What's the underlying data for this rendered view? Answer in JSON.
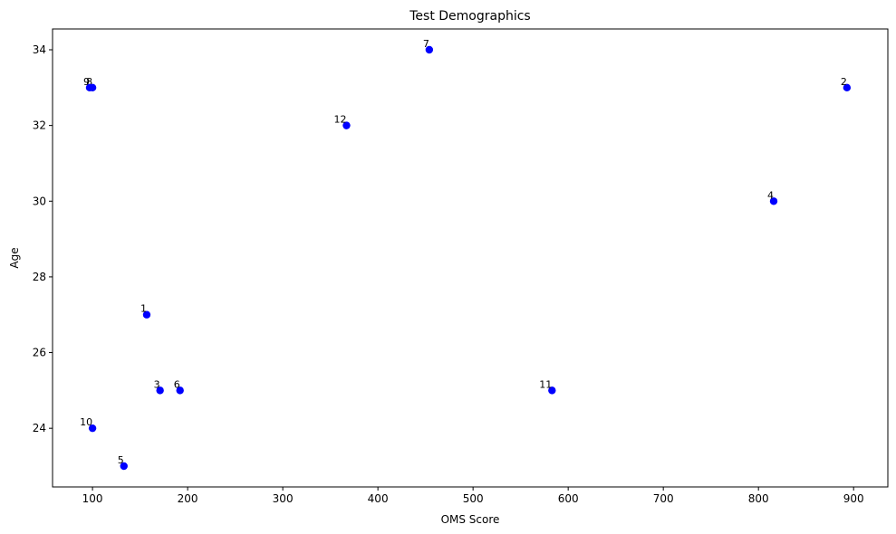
{
  "chart_data": {
    "type": "scatter",
    "title": "Test Demographics",
    "xlabel": "OMS Score",
    "ylabel": "Age",
    "xlim": [
      58,
      936
    ],
    "ylim": [
      22.45,
      34.55
    ],
    "xticks": [
      100,
      200,
      300,
      400,
      500,
      600,
      700,
      800,
      900
    ],
    "yticks": [
      24,
      26,
      28,
      30,
      32,
      34
    ],
    "grid": false,
    "marker_color": "#0000ff",
    "points": [
      {
        "label": "1",
        "x": 157,
        "y": 27
      },
      {
        "label": "2",
        "x": 893,
        "y": 33
      },
      {
        "label": "3",
        "x": 171,
        "y": 25
      },
      {
        "label": "4",
        "x": 816,
        "y": 30
      },
      {
        "label": "5",
        "x": 133,
        "y": 23
      },
      {
        "label": "6",
        "x": 192,
        "y": 25
      },
      {
        "label": "7",
        "x": 454,
        "y": 34
      },
      {
        "label": "8",
        "x": 100,
        "y": 33
      },
      {
        "label": "9",
        "x": 97,
        "y": 33
      },
      {
        "label": "10",
        "x": 100,
        "y": 24
      },
      {
        "label": "11",
        "x": 583,
        "y": 25
      },
      {
        "label": "12",
        "x": 367,
        "y": 32
      }
    ]
  }
}
